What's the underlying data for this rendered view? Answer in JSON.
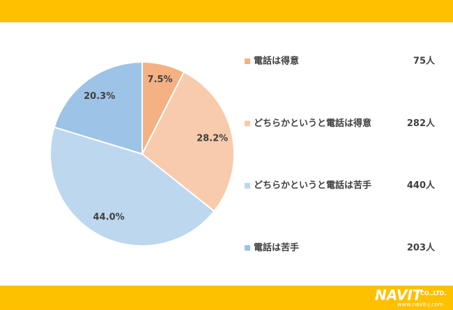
{
  "chart_data": {
    "type": "pie",
    "categories": [
      "電話は得意",
      "どちらかというと電話は得意",
      "どちらかというと電話は苦手",
      "電話は苦手"
    ],
    "values": [
      7.5,
      28.2,
      44.0,
      20.3
    ],
    "value_labels": [
      "7.5%",
      "28.2%",
      "44.0%",
      "20.3%"
    ],
    "counts": [
      75,
      282,
      440,
      203
    ],
    "count_labels": [
      "75人",
      "282人",
      "440人",
      "203人"
    ],
    "colors": [
      "#f4b183",
      "#f8cbad",
      "#bdd7ee",
      "#9dc3e6"
    ]
  },
  "footer": {
    "logo": "NAVIT",
    "company": "CO.,LTD.",
    "url": "www.navit-j.com"
  }
}
